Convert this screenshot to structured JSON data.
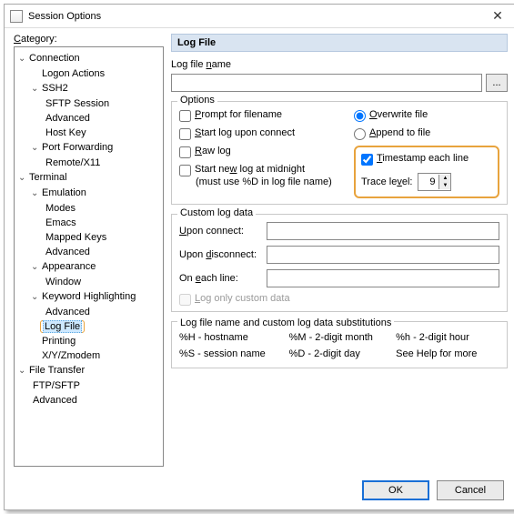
{
  "window": {
    "title": "Session Options"
  },
  "category_label": "Category:",
  "tree": {
    "connection": "Connection",
    "logon_actions": "Logon Actions",
    "ssh2": "SSH2",
    "sftp_session": "SFTP Session",
    "advanced": "Advanced",
    "host_key": "Host Key",
    "port_forwarding": "Port Forwarding",
    "remote_x11": "Remote/X11",
    "terminal": "Terminal",
    "emulation": "Emulation",
    "modes": "Modes",
    "emacs": "Emacs",
    "mapped_keys": "Mapped Keys",
    "appearance": "Appearance",
    "window": "Window",
    "keyword_highlighting": "Keyword Highlighting",
    "log_file": "Log File",
    "printing": "Printing",
    "xyzmodem": "X/Y/Zmodem",
    "file_transfer": "File Transfer",
    "ftp_sftp": "FTP/SFTP"
  },
  "panel": {
    "header": "Log File",
    "log_file_name_label": "Log file name",
    "log_file_name_value": "",
    "browse": "...",
    "options_title": "Options",
    "prompt_filename": "Prompt for filename",
    "start_log_connect": "Start log upon connect",
    "raw_log": "Raw log",
    "start_new_midnight": "Start new log at midnight",
    "start_new_midnight_sub": "(must use %D in log file name)",
    "overwrite_file": "Overwrite file",
    "append_to_file": "Append to file",
    "timestamp_each_line": "Timestamp each line",
    "trace_level_label": "Trace level:",
    "trace_level_value": "9",
    "custom_title": "Custom log data",
    "upon_connect": "Upon connect:",
    "upon_disconnect": "Upon disconnect:",
    "on_each_line": "On each line:",
    "log_only_custom": "Log only custom data",
    "subs_title": "Log file name and custom log data substitutions",
    "subs": {
      "h_host": "%H - hostname",
      "m_month": "%M - 2-digit month",
      "h_hour": "%h - 2-digit hour",
      "s_session": "%S - session name",
      "d_day": "%D - 2-digit day",
      "see_help": "See Help for more"
    }
  },
  "footer": {
    "ok": "OK",
    "cancel": "Cancel"
  },
  "state": {
    "prompt_filename": false,
    "start_log_connect": false,
    "raw_log": false,
    "start_new_midnight": false,
    "file_mode": "overwrite",
    "timestamp_each_line": true
  },
  "colors": {
    "highlight_orange": "#e8a33d",
    "selection_bg": "#cde8ff",
    "header_bg": "#d9e4f1"
  }
}
